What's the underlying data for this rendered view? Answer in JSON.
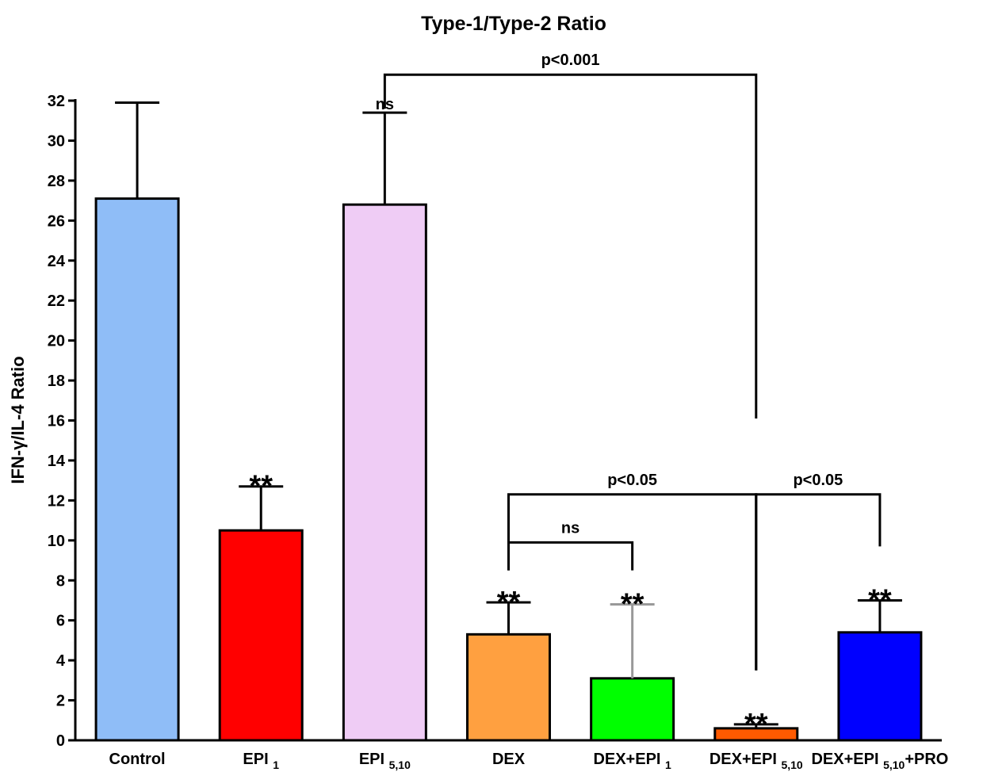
{
  "chart_data": {
    "type": "bar",
    "title": "Type-1/Type-2 Ratio",
    "ylabel": "IFN-γ/IL-4  Ratio",
    "xlabel": "",
    "ylim": [
      0,
      32
    ],
    "yticks": [
      0,
      2,
      4,
      6,
      8,
      10,
      12,
      14,
      16,
      18,
      20,
      22,
      24,
      26,
      28,
      30,
      32
    ],
    "categories": [
      {
        "main": "Control",
        "sub": "",
        "suffix": ""
      },
      {
        "main": "EPI",
        "sub": "1",
        "suffix": ""
      },
      {
        "main": "EPI",
        "sub": "5,10",
        "suffix": ""
      },
      {
        "main": "DEX",
        "sub": "",
        "suffix": ""
      },
      {
        "main": "DEX+EPI",
        "sub": "1",
        "suffix": ""
      },
      {
        "main": "DEX+EPI",
        "sub": "5,10",
        "suffix": ""
      },
      {
        "main": "DEX+EPI",
        "sub": "5,10",
        "suffix": "+PRO"
      }
    ],
    "values": [
      27.1,
      10.5,
      26.8,
      5.3,
      3.1,
      0.6,
      5.4
    ],
    "error_upper": [
      31.9,
      12.7,
      31.4,
      6.9,
      6.8,
      0.8,
      7.0
    ],
    "bar_colors": [
      "#8fbdf7",
      "#ff0000",
      "#efccf5",
      "#ffa040",
      "#00ff00",
      "#ff5a00",
      "#0000ff"
    ],
    "error_colors": [
      "#000000",
      "#000000",
      "#000000",
      "#000000",
      "#999999",
      "#000000",
      "#000000"
    ],
    "markers": [
      "",
      "**",
      "ns",
      "**",
      "**",
      "**",
      "**"
    ],
    "comparisons": [
      {
        "label": "p<0.001",
        "from": 2,
        "to": 5
      },
      {
        "label": "ns",
        "from": 3,
        "to": 4
      },
      {
        "label": "p<0.05",
        "from": 3,
        "to": 5
      },
      {
        "label": "p<0.05",
        "from": 5,
        "to": 6
      }
    ]
  }
}
